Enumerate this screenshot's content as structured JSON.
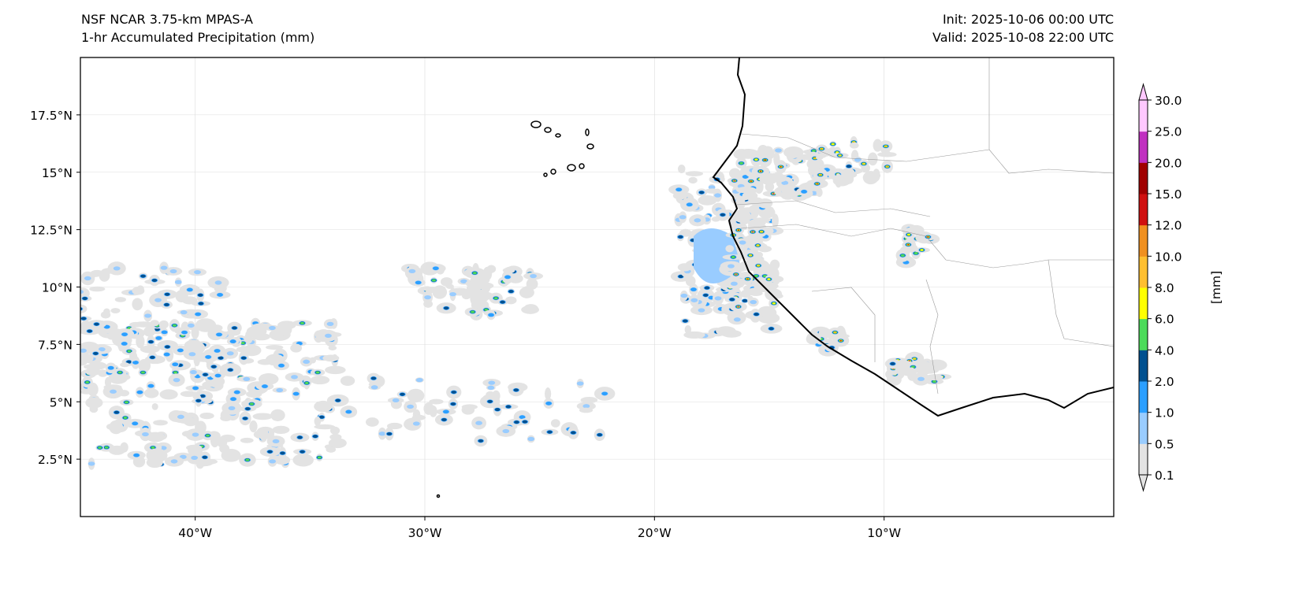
{
  "header": {
    "title_line1": "NSF NCAR 3.75-km MPAS-A",
    "title_line2": "1-hr Accumulated Precipitation (mm)",
    "init": "Init: 2025-10-06 00:00 UTC",
    "valid": "Valid: 2025-10-08 22:00 UTC"
  },
  "map": {
    "extent": {
      "lon": [
        -45,
        0
      ],
      "lat": [
        0,
        20
      ]
    },
    "lon_ticks": [
      {
        "value": -40,
        "label": "40°W"
      },
      {
        "value": -30,
        "label": "30°W"
      },
      {
        "value": -20,
        "label": "20°W"
      },
      {
        "value": -10,
        "label": "10°W"
      }
    ],
    "lat_ticks": [
      {
        "value": 2.5,
        "label": "2.5°N"
      },
      {
        "value": 5,
        "label": "5°N"
      },
      {
        "value": 7.5,
        "label": "7.5°N"
      },
      {
        "value": 10,
        "label": "10°N"
      },
      {
        "value": 12.5,
        "label": "12.5°N"
      },
      {
        "value": 15,
        "label": "15°N"
      },
      {
        "value": 17.5,
        "label": "17.5°N"
      }
    ]
  },
  "colorbar": {
    "label": "[mm]",
    "levels": [
      "0.1",
      "0.5",
      "1.0",
      "2.0",
      "4.0",
      "6.0",
      "8.0",
      "10.0",
      "12.0",
      "15.0",
      "20.0",
      "25.0",
      "30.0"
    ],
    "colors": [
      "#e3e3e3",
      "#99ccff",
      "#2b9fff",
      "#005090",
      "#4cdb5a",
      "#ffff00",
      "#ffbf30",
      "#f09020",
      "#d01010",
      "#a00000",
      "#c030c0",
      "#ffc8ff"
    ]
  }
}
